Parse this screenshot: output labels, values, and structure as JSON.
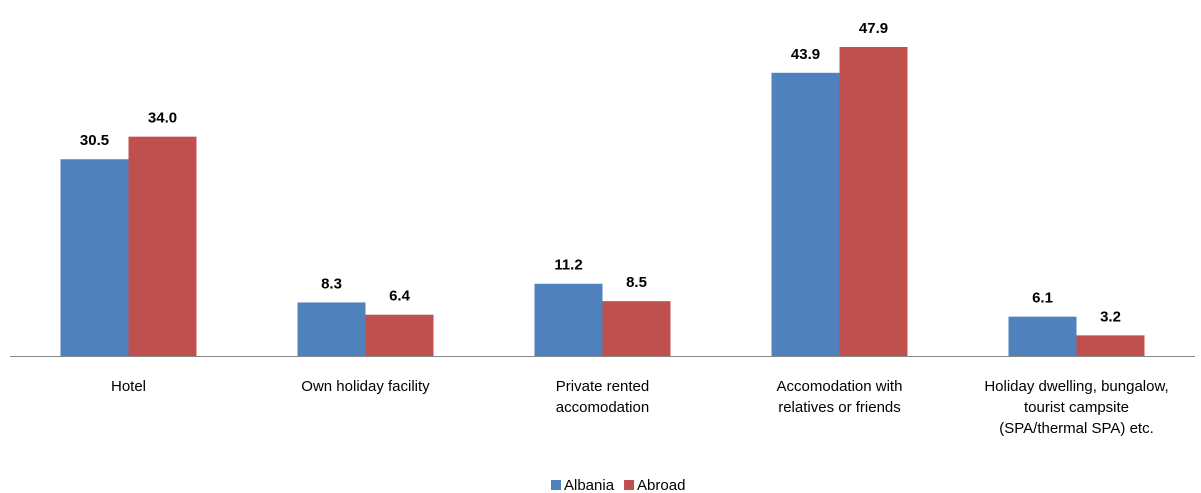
{
  "chart_data": {
    "type": "bar",
    "categories": [
      "Hotel",
      "Own holiday facility",
      "Private rented accomodation",
      "Accomodation with relatives or friends",
      "Holiday dwelling, bungalow, tourist campsite (SPA/thermal SPA) etc."
    ],
    "series": [
      {
        "name": "Albania",
        "color": "#4f81bd",
        "values": [
          30.5,
          8.3,
          11.2,
          43.9,
          6.1
        ],
        "value_labels": [
          "30.5",
          "8.3",
          "11.2",
          "43.9",
          "6.1"
        ]
      },
      {
        "name": "Abroad",
        "color": "#c0504d",
        "values": [
          34.0,
          6.4,
          8.5,
          47.9,
          3.2
        ],
        "value_labels": [
          "34.0",
          "6.4",
          "8.5",
          "47.9",
          "3.2"
        ]
      }
    ],
    "legend": "bottom"
  }
}
